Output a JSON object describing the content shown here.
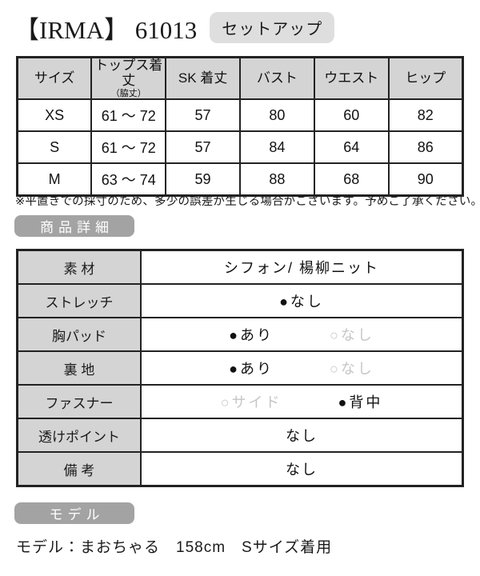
{
  "title": {
    "brand": "【IRMA】",
    "code": "61013",
    "badge": "セットアップ"
  },
  "size_table": {
    "col_headers": [
      "サイズ",
      "トップス着丈",
      "SK 着丈",
      "バスト",
      "ウエスト",
      "ヒップ"
    ],
    "col2_subheader": "（脇丈）",
    "rows": [
      {
        "size": "XS",
        "tops_length": "61 ～ 72",
        "sk_length": "57",
        "bust": "80",
        "waist": "60",
        "hip": "82"
      },
      {
        "size": "S",
        "tops_length": "61 ～ 72",
        "sk_length": "57",
        "bust": "84",
        "waist": "64",
        "hip": "86"
      },
      {
        "size": "M",
        "tops_length": "63 ～ 74",
        "sk_length": "59",
        "bust": "88",
        "waist": "68",
        "hip": "90"
      }
    ],
    "note": "※平置きでの採寸のため、多少の誤差が生じる場合がございます。予めご了承ください。"
  },
  "sections": {
    "details_heading": "商品詳細",
    "model_heading": "モデル"
  },
  "details_table": {
    "rows": [
      {
        "label": "素 材",
        "value": "シフォン/ 楊柳ニット"
      },
      {
        "label": "ストレッチ",
        "value": "●なし"
      },
      {
        "label": "胸パッド",
        "option_selected": "●あり",
        "option_unselected": "○なし"
      },
      {
        "label": "裏 地",
        "option_selected": "●あり",
        "option_unselected": "○なし"
      },
      {
        "label": "ファスナー",
        "option_unselected": "○サイド",
        "option_selected": "●背中"
      },
      {
        "label": "透けポイント",
        "value": "なし"
      },
      {
        "label": "備 考",
        "value": "なし"
      }
    ]
  },
  "model": {
    "info": "モデル：まおちゃる　158cm　Sサイズ着用"
  },
  "colors": {
    "table_header_bg": "#d4d4d4",
    "section_badge_bg": "#a3a3a3",
    "title_chip_bg": "#dedede",
    "table_border": "#222222",
    "unselected_option": "#c6c6c6"
  }
}
